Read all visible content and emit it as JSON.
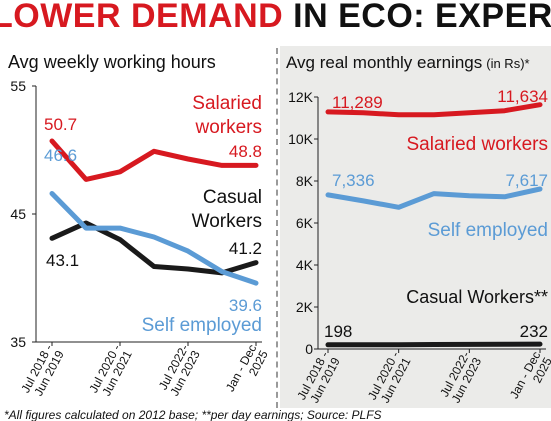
{
  "headline": {
    "text_red": "LOWER DEMAND",
    "text_black": "IN ECO: EXPERTS"
  },
  "footnote": "*All figures calculated on 2012 base; **per day earnings; Source: PLFS",
  "colors": {
    "red": "#d71920",
    "blue": "#5b9bd5",
    "black": "#1a1a1a",
    "panel_bg": "#ebebe9"
  },
  "chart_data": [
    {
      "type": "line",
      "title": "Avg weekly working hours",
      "ylim": [
        35,
        55
      ],
      "yticks": [
        "55",
        "45",
        "35"
      ],
      "ytick_values": [
        55,
        45,
        35
      ],
      "x": [
        0,
        1,
        2,
        3,
        4,
        5,
        6
      ],
      "xlim": [
        0,
        6
      ],
      "xticks": [
        {
          "label": "Jul 2018 -",
          "label2": "Jun 2019",
          "x": 0
        },
        {
          "label": "Jul 2020 -",
          "label2": "Jun 2021",
          "x": 2
        },
        {
          "label": "Jul 2022-",
          "label2": "Jun 2023",
          "x": 4
        },
        {
          "label": "Jan - Dec",
          "label2": "2025",
          "x": 6
        }
      ],
      "series": [
        {
          "name": "Salaried workers",
          "name_lines": [
            "Salaried",
            "workers"
          ],
          "color": "#d71920",
          "values": [
            50.7,
            47.7,
            48.3,
            49.9,
            49.3,
            48.8,
            48.8
          ],
          "first_label": "50.7",
          "last_label": "48.8"
        },
        {
          "name": "Casual Workers",
          "name_lines": [
            "Casual",
            "Workers"
          ],
          "color": "#1a1a1a",
          "values": [
            43.1,
            44.3,
            43.0,
            40.9,
            40.7,
            40.4,
            41.2
          ],
          "first_label": "43.1",
          "last_label": "41.2"
        },
        {
          "name": "Self employed",
          "name_lines": [
            "Self employed"
          ],
          "color": "#5b9bd5",
          "values": [
            46.6,
            43.9,
            43.9,
            43.2,
            42.1,
            40.5,
            39.6
          ],
          "first_label": "46.6",
          "last_label": "39.6"
        }
      ]
    },
    {
      "type": "line",
      "title": "Avg real monthly earnings",
      "title_unit": "(in Rs)*",
      "ylim": [
        0,
        12000
      ],
      "yticks": [
        "12K",
        "10K",
        "8K",
        "6K",
        "4K",
        "2K",
        "0"
      ],
      "ytick_values": [
        12000,
        10000,
        8000,
        6000,
        4000,
        2000,
        0
      ],
      "x": [
        0,
        1,
        2,
        3,
        4,
        5,
        6
      ],
      "xlim": [
        0,
        6
      ],
      "xticks": [
        {
          "label": "Jul 2018 -",
          "label2": "Jun 2019",
          "x": 0
        },
        {
          "label": "Jul 2020 -",
          "label2": "Jun 2021",
          "x": 2
        },
        {
          "label": "Jul 2022-",
          "label2": "Jun 2023",
          "x": 4
        },
        {
          "label": "Jan - Dec",
          "label2": "2025",
          "x": 6
        }
      ],
      "series": [
        {
          "name": "Salaried workers",
          "name_lines": [
            "Salaried workers"
          ],
          "color": "#d71920",
          "values": [
            11289,
            11250,
            11150,
            11150,
            11250,
            11350,
            11634
          ],
          "first_label": "11,289",
          "last_label": "11,634"
        },
        {
          "name": "Self employed",
          "name_lines": [
            "Self employed"
          ],
          "color": "#5b9bd5",
          "values": [
            7336,
            7050,
            6750,
            7400,
            7300,
            7250,
            7617
          ],
          "first_label": "7,336",
          "last_label": "7,617"
        },
        {
          "name": "Casual Workers**",
          "name_lines": [
            "Casual Workers**"
          ],
          "color": "#1a1a1a",
          "values": [
            198,
            200,
            205,
            215,
            220,
            225,
            232
          ],
          "first_label": "198",
          "last_label": "232"
        }
      ]
    }
  ]
}
